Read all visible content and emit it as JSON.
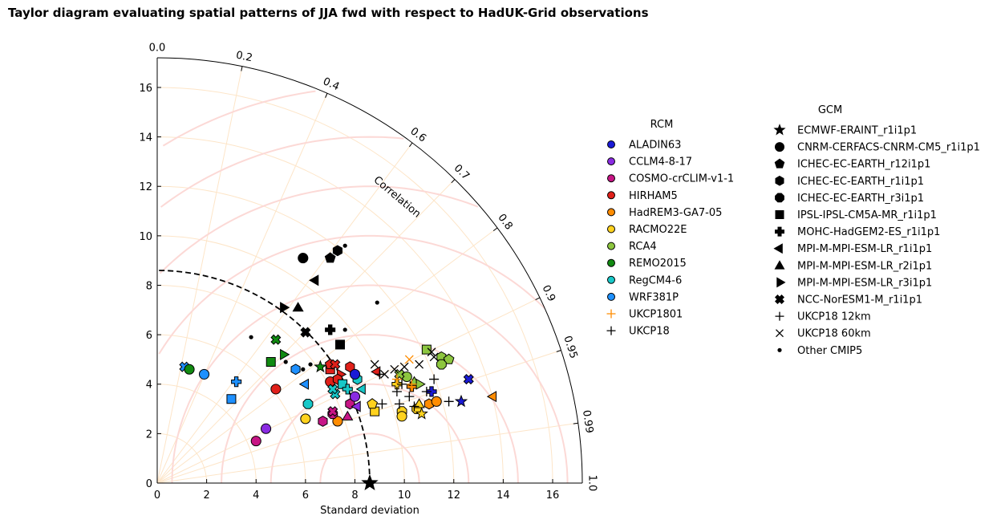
{
  "chart_data": {
    "type": "scatter",
    "subtype": "taylor-diagram",
    "title": "Taylor diagram evaluating spatial patterns of JJA fwd with respect to HadUK-Grid observations",
    "xlabel": "Standard deviation",
    "angular_label": "Correlation",
    "reference": {
      "std": 8.6,
      "label": "observations"
    },
    "std_range": [
      0,
      17.2
    ],
    "std_ticks": [
      0,
      2,
      4,
      6,
      8,
      10,
      12,
      14,
      16
    ],
    "correlation_ticks": [
      0.0,
      0.2,
      0.4,
      0.6,
      0.7,
      0.8,
      0.9,
      0.95,
      0.99,
      1.0
    ],
    "correlation_tick_labels": [
      "0.0",
      "0.2",
      "0.4",
      "0.6",
      "0.7",
      "0.8",
      "0.9",
      "0.95",
      "0.99",
      "1.0"
    ],
    "rcm_legend": {
      "title": "RCM",
      "entries": [
        {
          "name": "ALADIN63",
          "color": "#1a1ad6",
          "kind": "dot"
        },
        {
          "name": "CCLM4-8-17",
          "color": "#8a2be2",
          "kind": "dot"
        },
        {
          "name": "COSMO-crCLIM-v1-1",
          "color": "#c71585",
          "kind": "dot"
        },
        {
          "name": "HIRHAM5",
          "color": "#e0201a",
          "kind": "dot"
        },
        {
          "name": "HadREM3-GA7-05",
          "color": "#ff8c00",
          "kind": "dot"
        },
        {
          "name": "RACMO22E",
          "color": "#ffd21e",
          "kind": "dot"
        },
        {
          "name": "RCA4",
          "color": "#8dc63f",
          "kind": "dot"
        },
        {
          "name": "REMO2015",
          "color": "#118a11",
          "kind": "dot"
        },
        {
          "name": "RegCM4-6",
          "color": "#18c8c8",
          "kind": "dot"
        },
        {
          "name": "WRF381P",
          "color": "#1e90ff",
          "kind": "dot"
        },
        {
          "name": "UKCP1801",
          "color": "#ff8c00",
          "kind": "plus"
        },
        {
          "name": "UKCP18",
          "color": "#000000",
          "kind": "plus"
        }
      ]
    },
    "gcm_legend": {
      "title": "GCM",
      "entries": [
        {
          "name": "ECMWF-ERAINT_r1i1p1",
          "marker": "star"
        },
        {
          "name": "CNRM-CERFACS-CNRM-CM5_r1i1p1",
          "marker": "circle"
        },
        {
          "name": "ICHEC-EC-EARTH_r12i1p1",
          "marker": "pentagon"
        },
        {
          "name": "ICHEC-EC-EARTH_r1i1p1",
          "marker": "hexagon"
        },
        {
          "name": "ICHEC-EC-EARTH_r3i1p1",
          "marker": "octagon"
        },
        {
          "name": "IPSL-IPSL-CM5A-MR_r1i1p1",
          "marker": "square"
        },
        {
          "name": "MOHC-HadGEM2-ES_r1i1p1",
          "marker": "thickplus"
        },
        {
          "name": "MPI-M-MPI-ESM-LR_r1i1p1",
          "marker": "triangle-left"
        },
        {
          "name": "MPI-M-MPI-ESM-LR_r2i1p1",
          "marker": "triangle-up"
        },
        {
          "name": "MPI-M-MPI-ESM-LR_r3i1p1",
          "marker": "triangle-right"
        },
        {
          "name": "NCC-NorESM1-M_r1i1p1",
          "marker": "thickx"
        },
        {
          "name": "UKCP18 12km",
          "marker": "plus"
        },
        {
          "name": "UKCP18 60km",
          "marker": "x"
        },
        {
          "name": "Other CMIP5",
          "marker": "point"
        }
      ]
    },
    "points": [
      {
        "x": 8.6,
        "y": 0.0,
        "marker": "star",
        "color": "#000000",
        "group": "reference"
      },
      {
        "x": 5.9,
        "y": 9.1,
        "marker": "circle",
        "color": "#000000",
        "group": "gcm"
      },
      {
        "x": 7.0,
        "y": 9.1,
        "marker": "pentagon",
        "color": "#000000",
        "group": "gcm"
      },
      {
        "x": 7.3,
        "y": 9.4,
        "marker": "hexagon",
        "color": "#000000",
        "group": "gcm"
      },
      {
        "x": 6.4,
        "y": 8.2,
        "marker": "triangle-left",
        "color": "#000000",
        "group": "gcm"
      },
      {
        "x": 5.1,
        "y": 7.1,
        "marker": "triangle-right",
        "color": "#000000",
        "group": "gcm"
      },
      {
        "x": 5.7,
        "y": 7.1,
        "marker": "triangle-up",
        "color": "#000000",
        "group": "gcm"
      },
      {
        "x": 6.0,
        "y": 6.1,
        "marker": "thickx",
        "color": "#000000",
        "group": "gcm"
      },
      {
        "x": 7.0,
        "y": 6.2,
        "marker": "thickplus",
        "color": "#000000",
        "group": "gcm"
      },
      {
        "x": 7.4,
        "y": 5.6,
        "marker": "square",
        "color": "#000000",
        "group": "gcm"
      },
      {
        "x": 7.6,
        "y": 9.6,
        "marker": "point",
        "color": "#000000",
        "group": "other"
      },
      {
        "x": 8.9,
        "y": 7.3,
        "marker": "point",
        "color": "#000000",
        "group": "other"
      },
      {
        "x": 7.6,
        "y": 6.2,
        "marker": "point",
        "color": "#000000",
        "group": "other"
      },
      {
        "x": 3.8,
        "y": 5.9,
        "marker": "point",
        "color": "#000000",
        "group": "other"
      },
      {
        "x": 6.2,
        "y": 4.8,
        "marker": "point",
        "color": "#000000",
        "group": "other"
      },
      {
        "x": 5.9,
        "y": 4.6,
        "marker": "point",
        "color": "#000000",
        "group": "other"
      },
      {
        "x": 5.2,
        "y": 4.9,
        "marker": "point",
        "color": "#000000",
        "group": "other"
      },
      {
        "x": 1.1,
        "y": 4.7,
        "marker": "thickx",
        "color": "#1e90ff",
        "group": "rcm"
      },
      {
        "x": 1.3,
        "y": 4.6,
        "marker": "circle",
        "color": "#118a11",
        "group": "rcm"
      },
      {
        "x": 1.9,
        "y": 4.4,
        "marker": "circle",
        "color": "#1e90ff",
        "group": "rcm"
      },
      {
        "x": 3.2,
        "y": 4.1,
        "marker": "thickplus",
        "color": "#1e90ff",
        "group": "rcm"
      },
      {
        "x": 3.0,
        "y": 3.4,
        "marker": "square",
        "color": "#1e90ff",
        "group": "rcm"
      },
      {
        "x": 4.8,
        "y": 5.8,
        "marker": "thickx",
        "color": "#118a11",
        "group": "rcm"
      },
      {
        "x": 4.6,
        "y": 4.9,
        "marker": "square",
        "color": "#118a11",
        "group": "rcm"
      },
      {
        "x": 5.1,
        "y": 5.2,
        "marker": "triangle-right",
        "color": "#118a11",
        "group": "rcm"
      },
      {
        "x": 5.6,
        "y": 4.6,
        "marker": "hexagon",
        "color": "#1e90ff",
        "group": "rcm"
      },
      {
        "x": 6.6,
        "y": 4.7,
        "marker": "star",
        "color": "#118a11",
        "group": "rcm"
      },
      {
        "x": 4.8,
        "y": 3.8,
        "marker": "circle",
        "color": "#e0201a",
        "group": "rcm"
      },
      {
        "x": 6.0,
        "y": 4.0,
        "marker": "triangle-left",
        "color": "#1e90ff",
        "group": "rcm"
      },
      {
        "x": 6.1,
        "y": 3.2,
        "marker": "octagon",
        "color": "#18c8c8",
        "group": "rcm"
      },
      {
        "x": 6.0,
        "y": 2.6,
        "marker": "circle",
        "color": "#ffd21e",
        "group": "rcm"
      },
      {
        "x": 4.4,
        "y": 2.2,
        "marker": "circle",
        "color": "#8a2be2",
        "group": "rcm"
      },
      {
        "x": 4.0,
        "y": 1.7,
        "marker": "circle",
        "color": "#c71585",
        "group": "rcm"
      },
      {
        "x": 6.7,
        "y": 2.5,
        "marker": "hexagon",
        "color": "#c71585",
        "group": "rcm"
      },
      {
        "x": 7.3,
        "y": 2.5,
        "marker": "circle",
        "color": "#ff8c00",
        "group": "rcm"
      },
      {
        "x": 7.7,
        "y": 2.7,
        "marker": "triangle-up",
        "color": "#c71585",
        "group": "rcm"
      },
      {
        "x": 7.1,
        "y": 2.8,
        "marker": "octagon",
        "color": "#c71585",
        "group": "rcm"
      },
      {
        "x": 7.1,
        "y": 2.9,
        "marker": "thickx",
        "color": "#c71585",
        "group": "rcm"
      },
      {
        "x": 7.0,
        "y": 4.6,
        "marker": "square",
        "color": "#e0201a",
        "group": "rcm"
      },
      {
        "x": 7.0,
        "y": 4.8,
        "marker": "pentagon",
        "color": "#e0201a",
        "group": "rcm"
      },
      {
        "x": 7.2,
        "y": 4.8,
        "marker": "thickx",
        "color": "#e0201a",
        "group": "rcm"
      },
      {
        "x": 7.4,
        "y": 4.4,
        "marker": "triangle-right",
        "color": "#e0201a",
        "group": "rcm"
      },
      {
        "x": 7.0,
        "y": 4.1,
        "marker": "circle",
        "color": "#e0201a",
        "group": "rcm"
      },
      {
        "x": 7.3,
        "y": 4.2,
        "marker": "hexagon",
        "color": "#e0201a",
        "group": "rcm"
      },
      {
        "x": 7.8,
        "y": 4.7,
        "marker": "hexagon",
        "color": "#e0201a",
        "group": "rcm"
      },
      {
        "x": 7.2,
        "y": 3.6,
        "marker": "thickx",
        "color": "#18c8c8",
        "group": "rcm"
      },
      {
        "x": 7.5,
        "y": 4.0,
        "marker": "square",
        "color": "#18c8c8",
        "group": "rcm"
      },
      {
        "x": 7.7,
        "y": 3.8,
        "marker": "thickplus",
        "color": "#18c8c8",
        "group": "rcm"
      },
      {
        "x": 8.1,
        "y": 4.2,
        "marker": "hexagon",
        "color": "#18c8c8",
        "group": "rcm"
      },
      {
        "x": 8.3,
        "y": 3.8,
        "marker": "triangle-left",
        "color": "#18c8c8",
        "group": "rcm"
      },
      {
        "x": 7.1,
        "y": 3.8,
        "marker": "thickx",
        "color": "#18c8c8",
        "group": "rcm"
      },
      {
        "x": 7.8,
        "y": 3.2,
        "marker": "hexagon",
        "color": "#c71585",
        "group": "rcm"
      },
      {
        "x": 8.0,
        "y": 3.5,
        "marker": "circle",
        "color": "#8a2be2",
        "group": "rcm"
      },
      {
        "x": 8.1,
        "y": 3.1,
        "marker": "triangle-left",
        "color": "#8a2be2",
        "group": "rcm"
      },
      {
        "x": 8.0,
        "y": 4.4,
        "marker": "circle",
        "color": "#1a1ad6",
        "group": "rcm"
      },
      {
        "x": 8.9,
        "y": 4.5,
        "marker": "triangle-left",
        "color": "#e0201a",
        "group": "rcm"
      },
      {
        "x": 8.8,
        "y": 2.9,
        "marker": "square",
        "color": "#ffd21e",
        "group": "rcm"
      },
      {
        "x": 8.7,
        "y": 3.2,
        "marker": "pentagon",
        "color": "#ffd21e",
        "group": "rcm"
      },
      {
        "x": 9.7,
        "y": 4.0,
        "marker": "thickplus",
        "color": "#ffd21e",
        "group": "rcm"
      },
      {
        "x": 9.9,
        "y": 2.9,
        "marker": "octagon",
        "color": "#ffd21e",
        "group": "rcm"
      },
      {
        "x": 9.9,
        "y": 2.7,
        "marker": "circle",
        "color": "#ffd21e",
        "group": "rcm"
      },
      {
        "x": 10.5,
        "y": 3.0,
        "marker": "octagon",
        "color": "#ffd21e",
        "group": "rcm"
      },
      {
        "x": 10.7,
        "y": 2.8,
        "marker": "star",
        "color": "#ffd21e",
        "group": "rcm"
      },
      {
        "x": 10.6,
        "y": 3.2,
        "marker": "triangle-up",
        "color": "#ffd21e",
        "group": "rcm"
      },
      {
        "x": 11.0,
        "y": 3.2,
        "marker": "hexagon",
        "color": "#ff8c00",
        "group": "rcm"
      },
      {
        "x": 11.3,
        "y": 3.3,
        "marker": "circle",
        "color": "#ff8c00",
        "group": "rcm"
      },
      {
        "x": 10.3,
        "y": 3.9,
        "marker": "thickplus",
        "color": "#ff8c00",
        "group": "rcm"
      },
      {
        "x": 10.1,
        "y": 4.3,
        "marker": "circle",
        "color": "#8dc63f",
        "group": "rcm"
      },
      {
        "x": 10.4,
        "y": 4.1,
        "marker": "triangle-up",
        "color": "#8dc63f",
        "group": "rcm"
      },
      {
        "x": 10.6,
        "y": 4.0,
        "marker": "triangle-right",
        "color": "#8dc63f",
        "group": "rcm"
      },
      {
        "x": 9.8,
        "y": 4.4,
        "marker": "thickx",
        "color": "#8dc63f",
        "group": "rcm"
      },
      {
        "x": 10.9,
        "y": 5.4,
        "marker": "square",
        "color": "#8dc63f",
        "group": "rcm"
      },
      {
        "x": 11.5,
        "y": 5.1,
        "marker": "hexagon",
        "color": "#8dc63f",
        "group": "rcm"
      },
      {
        "x": 11.8,
        "y": 5.0,
        "marker": "pentagon",
        "color": "#8dc63f",
        "group": "rcm"
      },
      {
        "x": 11.5,
        "y": 4.8,
        "marker": "octagon",
        "color": "#8dc63f",
        "group": "rcm"
      },
      {
        "x": 11.1,
        "y": 3.7,
        "marker": "thickplus",
        "color": "#1a1ad6",
        "group": "rcm"
      },
      {
        "x": 12.6,
        "y": 4.2,
        "marker": "thickx",
        "color": "#1a1ad6",
        "group": "rcm"
      },
      {
        "x": 12.3,
        "y": 3.3,
        "marker": "star",
        "color": "#1a1ad6",
        "group": "rcm"
      },
      {
        "x": 13.6,
        "y": 3.5,
        "marker": "triangle-left",
        "color": "#ff8c00",
        "group": "rcm"
      },
      {
        "x": 10.2,
        "y": 5.0,
        "marker": "x",
        "color": "#ff8c00",
        "group": "ukcp1801"
      },
      {
        "x": 9.7,
        "y": 4.2,
        "marker": "plus",
        "color": "#ff8c00",
        "group": "ukcp1801"
      },
      {
        "x": 10.3,
        "y": 4.0,
        "marker": "plus",
        "color": "#ff8c00",
        "group": "ukcp1801"
      },
      {
        "x": 8.8,
        "y": 4.8,
        "marker": "x",
        "color": "#000000",
        "group": "ukcp18"
      },
      {
        "x": 9.2,
        "y": 4.4,
        "marker": "x",
        "color": "#000000",
        "group": "ukcp18"
      },
      {
        "x": 9.6,
        "y": 4.6,
        "marker": "x",
        "color": "#000000",
        "group": "ukcp18"
      },
      {
        "x": 10.0,
        "y": 4.7,
        "marker": "x",
        "color": "#000000",
        "group": "ukcp18"
      },
      {
        "x": 10.6,
        "y": 4.8,
        "marker": "x",
        "color": "#000000",
        "group": "ukcp18"
      },
      {
        "x": 11.1,
        "y": 5.3,
        "marker": "x",
        "color": "#000000",
        "group": "ukcp18"
      },
      {
        "x": 11.2,
        "y": 5.1,
        "marker": "x",
        "color": "#000000",
        "group": "ukcp18"
      },
      {
        "x": 9.0,
        "y": 4.4,
        "marker": "plus",
        "color": "#000000",
        "group": "ukcp18"
      },
      {
        "x": 9.7,
        "y": 3.7,
        "marker": "plus",
        "color": "#000000",
        "group": "ukcp18"
      },
      {
        "x": 10.2,
        "y": 3.5,
        "marker": "plus",
        "color": "#000000",
        "group": "ukcp18"
      },
      {
        "x": 10.9,
        "y": 3.7,
        "marker": "plus",
        "color": "#000000",
        "group": "ukcp18"
      },
      {
        "x": 11.2,
        "y": 4.2,
        "marker": "plus",
        "color": "#000000",
        "group": "ukcp18"
      },
      {
        "x": 9.1,
        "y": 3.2,
        "marker": "plus",
        "color": "#000000",
        "group": "ukcp18"
      },
      {
        "x": 9.8,
        "y": 3.2,
        "marker": "plus",
        "color": "#000000",
        "group": "ukcp18"
      },
      {
        "x": 10.4,
        "y": 3.1,
        "marker": "plus",
        "color": "#000000",
        "group": "ukcp18"
      },
      {
        "x": 11.8,
        "y": 3.3,
        "marker": "plus",
        "color": "#000000",
        "group": "ukcp18"
      },
      {
        "x": 9.9,
        "y": 4.0,
        "marker": "plus",
        "color": "#000000",
        "group": "ukcp18"
      }
    ]
  }
}
